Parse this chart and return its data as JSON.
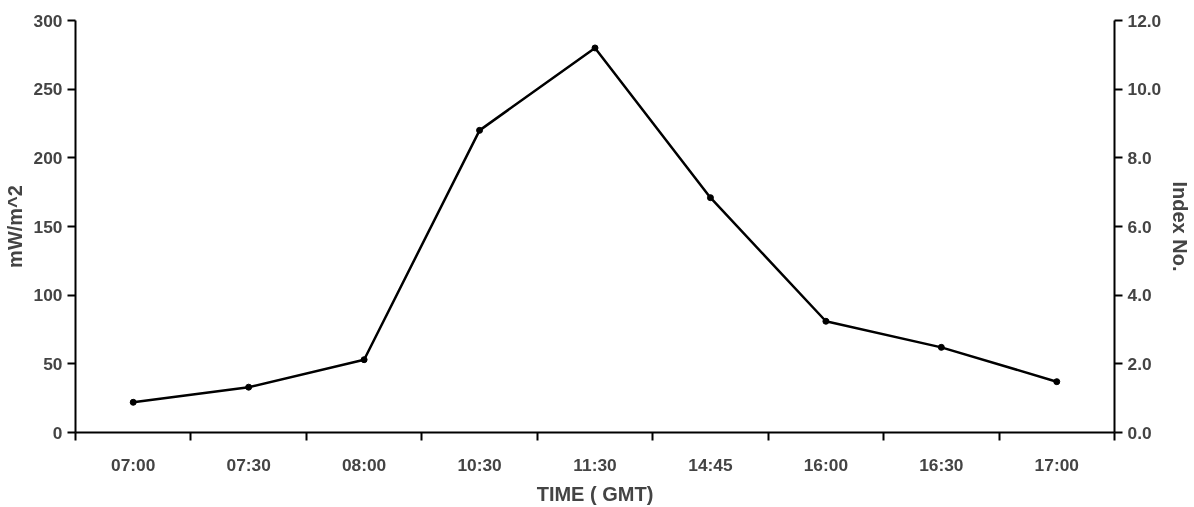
{
  "chart_data": {
    "type": "line",
    "xlabel": "TIME ( GMT)",
    "ylabel": "mW/m^2",
    "y2label": "Index No.",
    "categories": [
      "07:00",
      "07:30",
      "08:00",
      "10:30",
      "11:30",
      "14:45",
      "16:00",
      "16:30",
      "17:00"
    ],
    "series": [
      {
        "color": "#000000",
        "values": [
          22,
          33,
          53,
          220,
          280,
          171,
          81,
          62,
          37
        ]
      }
    ],
    "marker": "circle",
    "line_style": "solid",
    "grid": false,
    "ylim": [
      0,
      300
    ],
    "yticks": [
      0,
      50,
      100,
      150,
      200,
      250,
      300
    ],
    "y2lim": [
      0,
      12
    ],
    "y2ticks": [
      {
        "value": 0,
        "label": "0.0"
      },
      {
        "value": 2,
        "label": "2.0"
      },
      {
        "value": 4,
        "label": "4.0"
      },
      {
        "value": 6,
        "label": "6.0"
      },
      {
        "value": 8,
        "label": "8.0"
      },
      {
        "value": 10,
        "label": "10.0"
      },
      {
        "value": 12,
        "label": "12.0"
      }
    ]
  }
}
